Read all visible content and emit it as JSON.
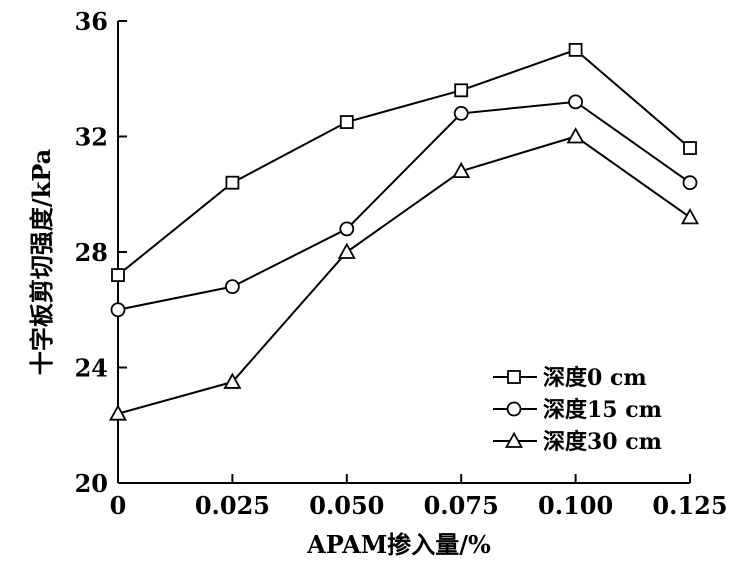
{
  "chart_data": {
    "type": "line",
    "title": "",
    "xlabel": "APAM掺入量/%",
    "ylabel": "十字板剪切强度/kPa",
    "x": [
      0,
      0.025,
      0.05,
      0.075,
      0.1,
      0.125
    ],
    "x_tick_labels": [
      "0",
      "0.025",
      "0.050",
      "0.075",
      "0.100",
      "0.125"
    ],
    "xlim": [
      0,
      0.125
    ],
    "ylim": [
      20,
      36
    ],
    "y_ticks": [
      20,
      24,
      28,
      32,
      36
    ],
    "y_tick_labels": [
      "20",
      "24",
      "28",
      "32",
      "36"
    ],
    "grid": false,
    "legend_position": "lower-right",
    "series": [
      {
        "name": "深度0 cm",
        "marker": "square",
        "values": [
          27.2,
          30.4,
          32.5,
          33.6,
          35.0,
          31.6
        ]
      },
      {
        "name": "深度15 cm",
        "marker": "circle",
        "values": [
          26.0,
          26.8,
          28.8,
          32.8,
          33.2,
          30.4
        ]
      },
      {
        "name": "深度30 cm",
        "marker": "triangle",
        "values": [
          22.4,
          23.5,
          28.0,
          30.8,
          32.0,
          29.2
        ]
      }
    ]
  }
}
